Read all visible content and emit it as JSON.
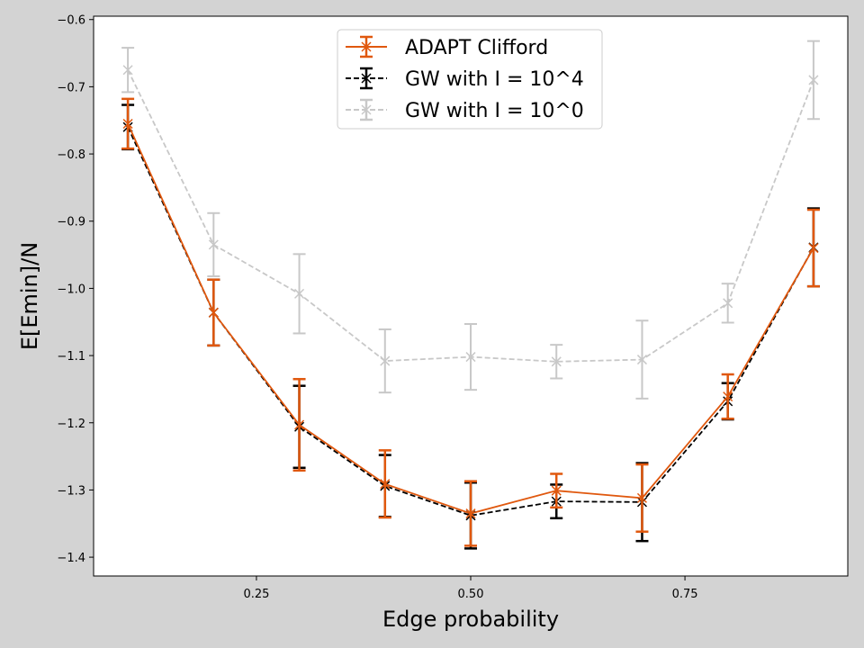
{
  "chart_data": {
    "type": "line",
    "xlabel": "Edge probability",
    "ylabel": "E[Emin]/N",
    "xlim": [
      0.06,
      0.94
    ],
    "ylim": [
      -1.428,
      -0.595
    ],
    "x_ticks": [
      0.25,
      0.5,
      0.75
    ],
    "x_tick_labels": [
      "0.25",
      "0.50",
      "0.75"
    ],
    "y_ticks": [
      -0.6,
      -0.7,
      -0.8,
      -0.9,
      -1.0,
      -1.1,
      -1.2,
      -1.3,
      -1.4
    ],
    "y_tick_labels": [
      "−0.6",
      "−0.7",
      "−0.8",
      "−0.9",
      "−1.0",
      "−1.1",
      "−1.2",
      "−1.3",
      "−1.4"
    ],
    "grid": false,
    "legend_position": "top-center",
    "x": [
      0.1,
      0.2,
      0.3,
      0.4,
      0.5,
      0.6,
      0.7,
      0.8,
      0.9
    ],
    "series": [
      {
        "name": "GW with I = 10^0",
        "color": "#c8c8c8",
        "linestyle": "dashed",
        "marker": "x",
        "values": [
          -0.675,
          -0.935,
          -1.008,
          -1.108,
          -1.102,
          -1.109,
          -1.106,
          -1.022,
          -0.69
        ],
        "errors": [
          0.033,
          0.047,
          0.059,
          0.047,
          0.049,
          0.025,
          0.058,
          0.029,
          0.058
        ]
      },
      {
        "name": "GW with I = 10^4",
        "color": "#000000",
        "linestyle": "dashed",
        "marker": "x",
        "values": [
          -0.76,
          -1.036,
          -1.206,
          -1.294,
          -1.338,
          -1.317,
          -1.318,
          -1.168,
          -0.939
        ],
        "errors": [
          0.033,
          0.049,
          0.061,
          0.046,
          0.049,
          0.025,
          0.058,
          0.027,
          0.058
        ]
      },
      {
        "name": "ADAPT Clifford",
        "color": "#e0580e",
        "linestyle": "solid",
        "marker": "x",
        "values": [
          -0.755,
          -1.036,
          -1.203,
          -1.291,
          -1.335,
          -1.301,
          -1.312,
          -1.161,
          -0.94
        ],
        "errors": [
          0.037,
          0.049,
          0.068,
          0.05,
          0.048,
          0.025,
          0.05,
          0.033,
          0.057
        ]
      }
    ],
    "legend_order": [
      "ADAPT Clifford",
      "GW with I = 10^4",
      "GW with I = 10^0"
    ]
  }
}
